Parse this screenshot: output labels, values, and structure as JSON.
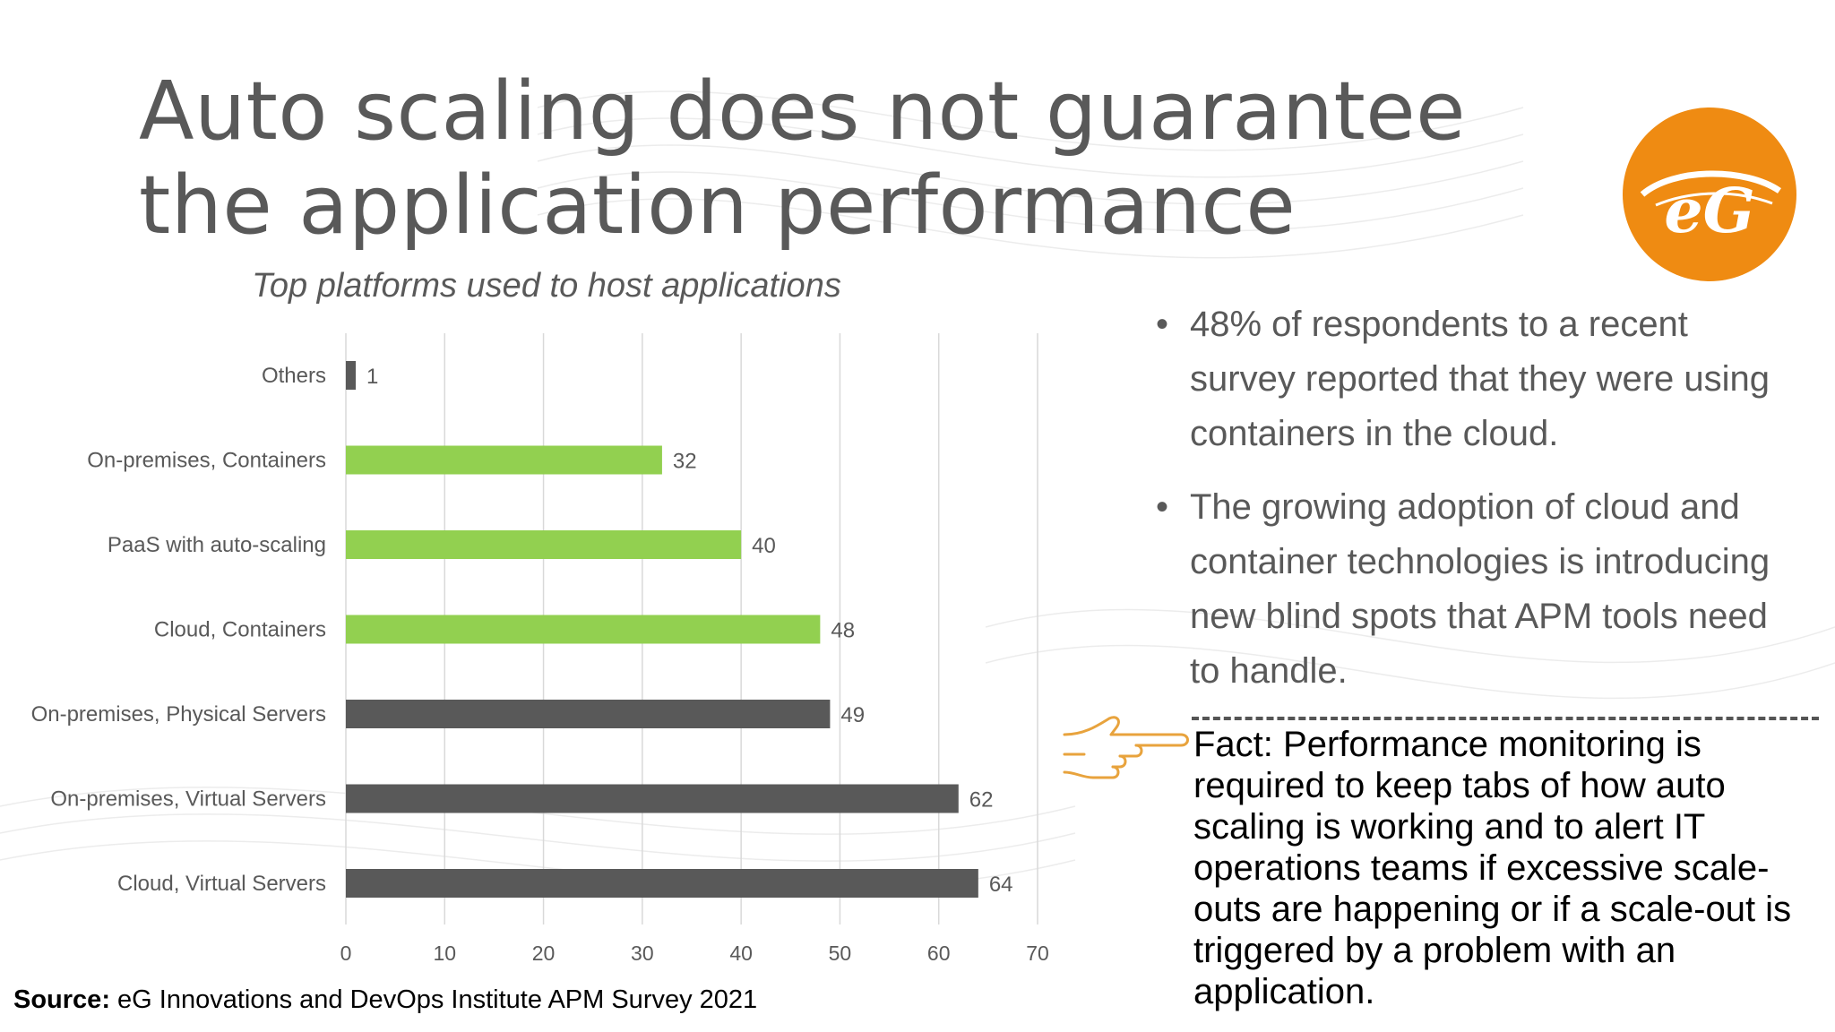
{
  "slide": {
    "title": "Auto scaling does not guarantee the application performance",
    "logo_text": "eG",
    "bullets": [
      "48% of respondents to a recent survey reported that they were using containers in the cloud.",
      "The growing adoption of cloud and container technologies is introducing new blind spots that APM tools need to handle."
    ],
    "bullet_symbol": "•",
    "fact_text": "Fact: Performance monitoring is required to keep tabs of how auto scaling is working and to alert IT operations teams if excessive scale-outs are happening or if a scale-out is triggered by a problem with an application.",
    "source_label": "Source:",
    "source_text": "eG Innovations and DevOps Institute APM Survey 2021",
    "icons": [
      "eg-logo-icon",
      "pointing-hand-icon"
    ]
  },
  "colors": {
    "title": "#595959",
    "logo_orange": "#ef8b12",
    "bar_green": "#92d050",
    "bar_gray": "#595959",
    "hand_outline": "#e8a33d"
  },
  "chart_data": {
    "type": "bar",
    "orientation": "horizontal",
    "title": "Top platforms used to host applications",
    "categories": [
      "Others",
      "On-premises, Containers",
      "PaaS with auto-scaling",
      "Cloud, Containers",
      "On-premises, Physical Servers",
      "On-premises, Virtual Servers",
      "Cloud, Virtual Servers"
    ],
    "values": [
      1,
      32,
      40,
      48,
      49,
      62,
      64
    ],
    "bar_colors": [
      "#595959",
      "#92d050",
      "#92d050",
      "#92d050",
      "#595959",
      "#595959",
      "#595959"
    ],
    "data_labels": true,
    "xlim": [
      0,
      70
    ],
    "xticks": [
      0,
      10,
      20,
      30,
      40,
      50,
      60,
      70
    ],
    "grid": true,
    "xlabel": "",
    "ylabel": ""
  }
}
